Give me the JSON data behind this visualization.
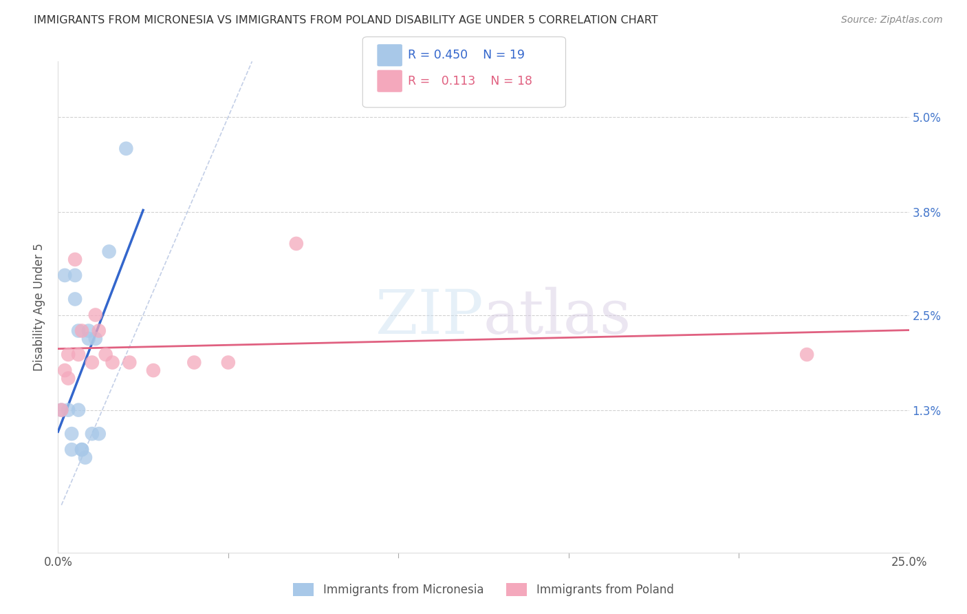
{
  "title": "IMMIGRANTS FROM MICRONESIA VS IMMIGRANTS FROM POLAND DISABILITY AGE UNDER 5 CORRELATION CHART",
  "source": "Source: ZipAtlas.com",
  "ylabel": "Disability Age Under 5",
  "y_tick_labels": [
    "1.3%",
    "2.5%",
    "3.8%",
    "5.0%"
  ],
  "y_tick_values": [
    0.013,
    0.025,
    0.038,
    0.05
  ],
  "x_tick_labels": [
    "0.0%",
    "",
    "",
    "",
    "",
    "25.0%"
  ],
  "x_tick_values": [
    0.0,
    0.05,
    0.1,
    0.15,
    0.2,
    0.25
  ],
  "xlim": [
    0.0,
    0.25
  ],
  "ylim": [
    -0.005,
    0.057
  ],
  "legend_label1": "Immigrants from Micronesia",
  "legend_label2": "Immigrants from Poland",
  "R1": "0.450",
  "N1": "19",
  "R2": "0.113",
  "N2": "18",
  "color1": "#a8c8e8",
  "color2": "#f4a8bc",
  "line_color1": "#3366cc",
  "line_color2": "#e06080",
  "watermark_zip": "ZIP",
  "watermark_atlas": "atlas",
  "micronesia_x": [
    0.001,
    0.002,
    0.003,
    0.004,
    0.004,
    0.005,
    0.005,
    0.006,
    0.006,
    0.007,
    0.007,
    0.008,
    0.009,
    0.009,
    0.01,
    0.011,
    0.012,
    0.015,
    0.02
  ],
  "micronesia_y": [
    0.013,
    0.03,
    0.013,
    0.008,
    0.01,
    0.03,
    0.027,
    0.013,
    0.023,
    0.008,
    0.008,
    0.007,
    0.023,
    0.022,
    0.01,
    0.022,
    0.01,
    0.033,
    0.046
  ],
  "poland_x": [
    0.001,
    0.002,
    0.003,
    0.003,
    0.005,
    0.006,
    0.007,
    0.01,
    0.011,
    0.012,
    0.014,
    0.016,
    0.021,
    0.028,
    0.04,
    0.05,
    0.07,
    0.22
  ],
  "poland_y": [
    0.013,
    0.018,
    0.017,
    0.02,
    0.032,
    0.02,
    0.023,
    0.019,
    0.025,
    0.023,
    0.02,
    0.019,
    0.019,
    0.018,
    0.019,
    0.019,
    0.034,
    0.02
  ],
  "dash_line_color": "#aabbdd"
}
